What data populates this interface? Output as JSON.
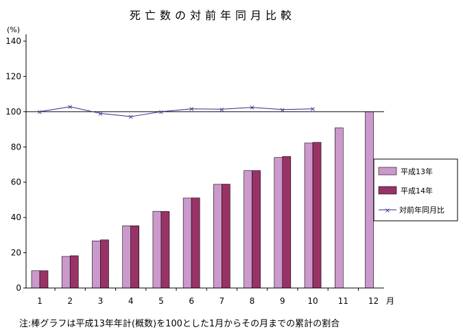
{
  "chart_data": {
    "type": "bar",
    "title": "死亡数の対前年同月比較",
    "y_unit_label": "(%)",
    "x_unit_label": "月",
    "note": "注:棒グラフは平成13年年計(概数)を100とした1月からその月までの累計の割合",
    "ylim": [
      0,
      140
    ],
    "yticks": [
      0,
      20,
      40,
      60,
      80,
      100,
      120,
      140
    ],
    "categories": [
      "1",
      "2",
      "3",
      "4",
      "5",
      "6",
      "7",
      "8",
      "9",
      "10",
      "11",
      "12"
    ],
    "reference_line": 100,
    "grid": false,
    "legend_position": "right",
    "series": [
      {
        "name": "平成13年",
        "kind": "bar",
        "color": "#cc99cc",
        "values": [
          9.8,
          17.9,
          26.7,
          35.3,
          43.5,
          51.0,
          58.8,
          66.6,
          74.0,
          82.2,
          90.8,
          100.0
        ]
      },
      {
        "name": "平成14年",
        "kind": "bar",
        "color": "#993366",
        "values": [
          9.8,
          18.3,
          27.3,
          35.3,
          43.4,
          51.1,
          58.9,
          66.6,
          74.6,
          82.6,
          null,
          null
        ]
      },
      {
        "name": "対前年同月比",
        "kind": "line",
        "color": "#2a2a8a",
        "values": [
          100.0,
          102.8,
          99.0,
          97.2,
          100.0,
          101.6,
          101.4,
          102.4,
          101.2,
          101.6,
          null,
          null
        ]
      }
    ]
  }
}
